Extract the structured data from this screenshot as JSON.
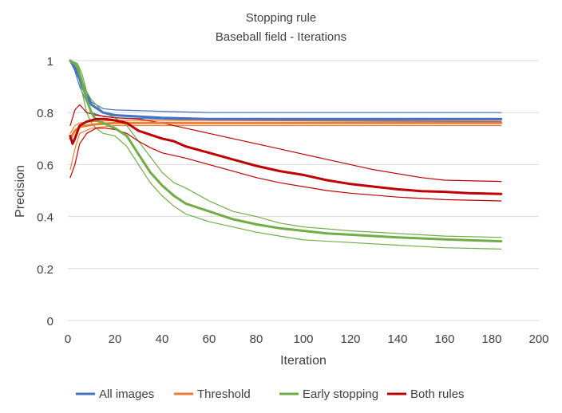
{
  "chart_data": {
    "type": "line",
    "title": "Stopping rule",
    "subtitle": "Baseball field - Iterations",
    "xlabel": "Iteration",
    "ylabel": "Precision",
    "xlim": [
      0,
      200
    ],
    "ylim": [
      0,
      1
    ],
    "x_ticks": [
      "0",
      "20",
      "40",
      "60",
      "80",
      "100",
      "120",
      "140",
      "160",
      "180",
      "200"
    ],
    "y_ticks": [
      "0",
      "0.2",
      "0.4",
      "0.6",
      "0.8",
      "1"
    ],
    "grid": "horizontal",
    "legend_position": "bottom",
    "series": [
      {
        "name": "All images",
        "color": "#4472C4",
        "role": "mean",
        "points": [
          [
            1,
            1.0
          ],
          [
            3,
            0.97
          ],
          [
            5,
            0.93
          ],
          [
            7,
            0.88
          ],
          [
            10,
            0.83
          ],
          [
            15,
            0.8
          ],
          [
            20,
            0.79
          ],
          [
            30,
            0.785
          ],
          [
            40,
            0.78
          ],
          [
            60,
            0.775
          ],
          [
            100,
            0.775
          ],
          [
            184,
            0.775
          ]
        ]
      },
      {
        "name": "All images (upper)",
        "color": "#4472C4",
        "role": "bound",
        "points": [
          [
            1,
            1.0
          ],
          [
            3,
            0.98
          ],
          [
            5,
            0.95
          ],
          [
            7,
            0.9
          ],
          [
            10,
            0.84
          ],
          [
            15,
            0.815
          ],
          [
            20,
            0.81
          ],
          [
            40,
            0.805
          ],
          [
            60,
            0.8
          ],
          [
            184,
            0.8
          ]
        ]
      },
      {
        "name": "All images (lower)",
        "color": "#4472C4",
        "role": "bound",
        "points": [
          [
            1,
            1.0
          ],
          [
            3,
            0.96
          ],
          [
            5,
            0.9
          ],
          [
            7,
            0.86
          ],
          [
            10,
            0.8
          ],
          [
            15,
            0.785
          ],
          [
            20,
            0.78
          ],
          [
            40,
            0.775
          ],
          [
            60,
            0.77
          ],
          [
            184,
            0.765
          ]
        ]
      },
      {
        "name": "Threshold",
        "color": "#ED7D31",
        "role": "mean",
        "points": [
          [
            1,
            0.7
          ],
          [
            3,
            0.73
          ],
          [
            5,
            0.745
          ],
          [
            8,
            0.75
          ],
          [
            12,
            0.755
          ],
          [
            20,
            0.76
          ],
          [
            40,
            0.76
          ],
          [
            184,
            0.76
          ]
        ]
      },
      {
        "name": "Threshold (upper)",
        "color": "#ED7D31",
        "role": "bound",
        "points": [
          [
            1,
            0.72
          ],
          [
            3,
            0.75
          ],
          [
            5,
            0.76
          ],
          [
            10,
            0.765
          ],
          [
            20,
            0.77
          ],
          [
            184,
            0.77
          ]
        ]
      },
      {
        "name": "Threshold (lower)",
        "color": "#ED7D31",
        "role": "bound",
        "points": [
          [
            1,
            0.58
          ],
          [
            3,
            0.66
          ],
          [
            5,
            0.72
          ],
          [
            10,
            0.74
          ],
          [
            20,
            0.75
          ],
          [
            184,
            0.75
          ]
        ]
      },
      {
        "name": "Early stopping",
        "color": "#70AD47",
        "role": "mean",
        "points": [
          [
            1,
            1.0
          ],
          [
            4,
            0.98
          ],
          [
            6,
            0.92
          ],
          [
            8,
            0.85
          ],
          [
            10,
            0.8
          ],
          [
            12,
            0.77
          ],
          [
            15,
            0.76
          ],
          [
            20,
            0.74
          ],
          [
            25,
            0.71
          ],
          [
            30,
            0.64
          ],
          [
            35,
            0.57
          ],
          [
            40,
            0.52
          ],
          [
            45,
            0.48
          ],
          [
            50,
            0.45
          ],
          [
            60,
            0.42
          ],
          [
            70,
            0.39
          ],
          [
            80,
            0.37
          ],
          [
            90,
            0.355
          ],
          [
            100,
            0.345
          ],
          [
            110,
            0.335
          ],
          [
            120,
            0.33
          ],
          [
            140,
            0.32
          ],
          [
            160,
            0.312
          ],
          [
            184,
            0.305
          ]
        ]
      },
      {
        "name": "Early stopping (upper)",
        "color": "#70AD47",
        "role": "bound",
        "points": [
          [
            1,
            1.0
          ],
          [
            4,
            0.99
          ],
          [
            6,
            0.95
          ],
          [
            8,
            0.88
          ],
          [
            10,
            0.85
          ],
          [
            12,
            0.83
          ],
          [
            15,
            0.8
          ],
          [
            20,
            0.78
          ],
          [
            25,
            0.75
          ],
          [
            30,
            0.69
          ],
          [
            35,
            0.63
          ],
          [
            40,
            0.57
          ],
          [
            45,
            0.53
          ],
          [
            50,
            0.51
          ],
          [
            60,
            0.46
          ],
          [
            70,
            0.42
          ],
          [
            80,
            0.4
          ],
          [
            90,
            0.375
          ],
          [
            100,
            0.36
          ],
          [
            120,
            0.345
          ],
          [
            140,
            0.335
          ],
          [
            160,
            0.325
          ],
          [
            184,
            0.32
          ]
        ]
      },
      {
        "name": "Early stopping (lower)",
        "color": "#70AD47",
        "role": "bound",
        "points": [
          [
            1,
            1.0
          ],
          [
            4,
            0.96
          ],
          [
            6,
            0.88
          ],
          [
            8,
            0.8
          ],
          [
            10,
            0.76
          ],
          [
            12,
            0.74
          ],
          [
            15,
            0.72
          ],
          [
            20,
            0.71
          ],
          [
            25,
            0.67
          ],
          [
            30,
            0.6
          ],
          [
            35,
            0.53
          ],
          [
            40,
            0.48
          ],
          [
            45,
            0.44
          ],
          [
            50,
            0.41
          ],
          [
            60,
            0.38
          ],
          [
            70,
            0.36
          ],
          [
            80,
            0.34
          ],
          [
            90,
            0.325
          ],
          [
            100,
            0.31
          ],
          [
            120,
            0.3
          ],
          [
            140,
            0.29
          ],
          [
            160,
            0.28
          ],
          [
            184,
            0.275
          ]
        ]
      },
      {
        "name": "Both rules",
        "color": "#C00000",
        "role": "mean",
        "points": [
          [
            1,
            0.71
          ],
          [
            2,
            0.68
          ],
          [
            3,
            0.7
          ],
          [
            5,
            0.75
          ],
          [
            8,
            0.765
          ],
          [
            12,
            0.775
          ],
          [
            16,
            0.775
          ],
          [
            20,
            0.77
          ],
          [
            25,
            0.76
          ],
          [
            30,
            0.73
          ],
          [
            35,
            0.715
          ],
          [
            40,
            0.7
          ],
          [
            45,
            0.69
          ],
          [
            50,
            0.67
          ],
          [
            60,
            0.645
          ],
          [
            70,
            0.62
          ],
          [
            80,
            0.595
          ],
          [
            90,
            0.575
          ],
          [
            100,
            0.56
          ],
          [
            110,
            0.54
          ],
          [
            120,
            0.525
          ],
          [
            130,
            0.515
          ],
          [
            140,
            0.505
          ],
          [
            150,
            0.498
          ],
          [
            160,
            0.495
          ],
          [
            170,
            0.49
          ],
          [
            184,
            0.487
          ]
        ]
      },
      {
        "name": "Both rules (upper)",
        "color": "#C00000",
        "role": "bound",
        "points": [
          [
            1,
            0.75
          ],
          [
            3,
            0.81
          ],
          [
            5,
            0.83
          ],
          [
            8,
            0.8
          ],
          [
            12,
            0.79
          ],
          [
            16,
            0.785
          ],
          [
            20,
            0.78
          ],
          [
            30,
            0.775
          ],
          [
            40,
            0.76
          ],
          [
            50,
            0.74
          ],
          [
            60,
            0.72
          ],
          [
            70,
            0.7
          ],
          [
            80,
            0.68
          ],
          [
            90,
            0.66
          ],
          [
            100,
            0.64
          ],
          [
            110,
            0.62
          ],
          [
            120,
            0.6
          ],
          [
            130,
            0.58
          ],
          [
            140,
            0.565
          ],
          [
            150,
            0.55
          ],
          [
            160,
            0.54
          ],
          [
            184,
            0.535
          ]
        ]
      },
      {
        "name": "Both rules (lower)",
        "color": "#C00000",
        "role": "bound",
        "points": [
          [
            1,
            0.55
          ],
          [
            3,
            0.6
          ],
          [
            5,
            0.68
          ],
          [
            8,
            0.72
          ],
          [
            12,
            0.74
          ],
          [
            16,
            0.74
          ],
          [
            20,
            0.735
          ],
          [
            25,
            0.72
          ],
          [
            30,
            0.69
          ],
          [
            35,
            0.665
          ],
          [
            40,
            0.645
          ],
          [
            50,
            0.625
          ],
          [
            60,
            0.6
          ],
          [
            70,
            0.575
          ],
          [
            80,
            0.55
          ],
          [
            90,
            0.53
          ],
          [
            100,
            0.515
          ],
          [
            110,
            0.5
          ],
          [
            120,
            0.49
          ],
          [
            140,
            0.475
          ],
          [
            160,
            0.465
          ],
          [
            184,
            0.46
          ]
        ]
      }
    ],
    "legend": [
      {
        "label": "All images",
        "color": "#4472C4"
      },
      {
        "label": "Threshold",
        "color": "#ED7D31"
      },
      {
        "label": "Early stopping",
        "color": "#70AD47"
      },
      {
        "label": "Both rules",
        "color": "#C00000"
      }
    ]
  }
}
